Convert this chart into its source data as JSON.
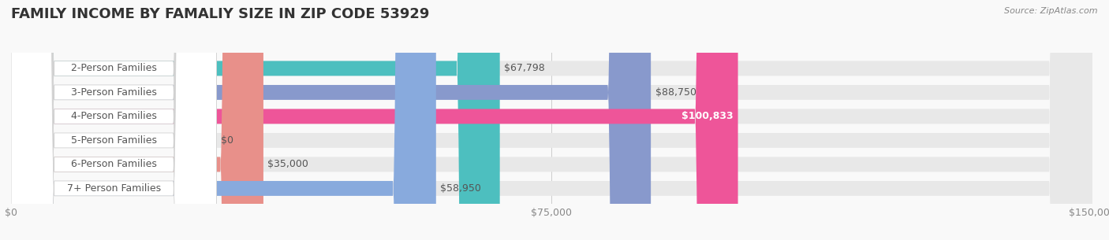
{
  "title": "FAMILY INCOME BY FAMALIY SIZE IN ZIP CODE 53929",
  "source": "Source: ZipAtlas.com",
  "categories": [
    "2-Person Families",
    "3-Person Families",
    "4-Person Families",
    "5-Person Families",
    "6-Person Families",
    "7+ Person Families"
  ],
  "values": [
    67798,
    88750,
    100833,
    0,
    35000,
    58950
  ],
  "bar_colors": [
    "#4dbfbf",
    "#8899cc",
    "#ee5599",
    "#f8c89a",
    "#e8908a",
    "#88aadd"
  ],
  "bar_bg_color": "#e8e8e8",
  "xlim": [
    0,
    150000
  ],
  "xticks": [
    0,
    75000,
    150000
  ],
  "xtick_labels": [
    "$0",
    "$75,000",
    "$150,000"
  ],
  "value_labels": [
    "$67,798",
    "$88,750",
    "$100,833",
    "$0",
    "$35,000",
    "$58,950"
  ],
  "background_color": "#f9f9f9",
  "title_fontsize": 13,
  "tick_fontsize": 9,
  "label_fontsize": 9,
  "value_fontsize": 9
}
